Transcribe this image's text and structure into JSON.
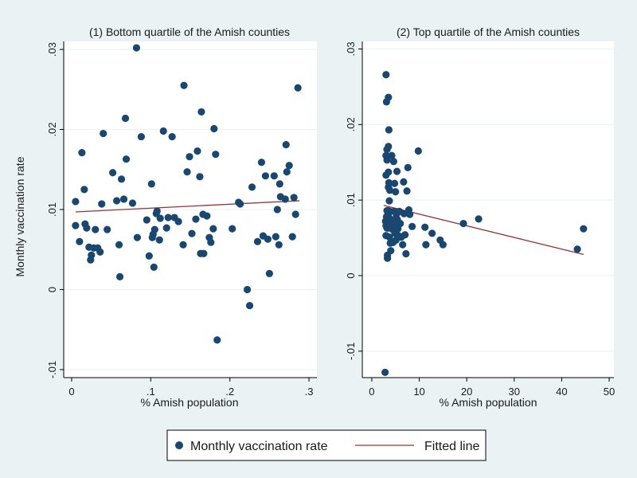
{
  "figure": {
    "ylabel": "Monthly vaccination rate",
    "legend": {
      "series_label": "Monthly vaccination rate",
      "line_label": "Fitted line",
      "placement": "bottom-center"
    }
  },
  "colors": {
    "background": "#eaf2f3",
    "plot_bg": "#ffffff",
    "marker": "#1a476f",
    "fit_line": "#90353b",
    "grid": "#eaf2f3"
  },
  "chart_data": [
    {
      "type": "scatter",
      "title": "(1) Bottom quartile of the Amish counties",
      "xlabel": "% Amish population",
      "xlim": [
        -0.01,
        0.31
      ],
      "ylim": [
        -0.011,
        0.031
      ],
      "xticks": [
        0,
        0.1,
        0.2,
        0.3
      ],
      "xtick_labels": [
        "0",
        ".1",
        ".2",
        ".3"
      ],
      "yticks": [
        -0.01,
        0,
        0.01,
        0.02,
        0.03
      ],
      "ytick_labels": [
        "-.01",
        "0",
        ".01",
        ".02",
        ".03"
      ],
      "grid": true,
      "points": [
        [
          0.005,
          0.011
        ],
        [
          0.005,
          0.008
        ],
        [
          0.01,
          0.006
        ],
        [
          0.013,
          0.0171
        ],
        [
          0.016,
          0.0125
        ],
        [
          0.017,
          0.0082
        ],
        [
          0.019,
          0.0077
        ],
        [
          0.022,
          0.0053
        ],
        [
          0.024,
          0.0037
        ],
        [
          0.025,
          0.0043
        ],
        [
          0.028,
          0.0052
        ],
        [
          0.03,
          0.0075
        ],
        [
          0.033,
          0.0052
        ],
        [
          0.036,
          0.0047
        ],
        [
          0.038,
          0.0107
        ],
        [
          0.04,
          0.0195
        ],
        [
          0.045,
          0.0075
        ],
        [
          0.052,
          0.0146
        ],
        [
          0.057,
          0.0111
        ],
        [
          0.06,
          0.0056
        ],
        [
          0.061,
          0.0016
        ],
        [
          0.063,
          0.0138
        ],
        [
          0.066,
          0.0113
        ],
        [
          0.068,
          0.0214
        ],
        [
          0.069,
          0.0163
        ],
        [
          0.077,
          0.0108
        ],
        [
          0.082,
          0.0302
        ],
        [
          0.083,
          0.0065
        ],
        [
          0.088,
          0.0191
        ],
        [
          0.095,
          0.0087
        ],
        [
          0.098,
          0.0042
        ],
        [
          0.101,
          0.0132
        ],
        [
          0.102,
          0.0065
        ],
        [
          0.103,
          0.0069
        ],
        [
          0.104,
          0.0028
        ],
        [
          0.105,
          0.0075
        ],
        [
          0.107,
          0.0095
        ],
        [
          0.108,
          0.0098
        ],
        [
          0.111,
          0.0062
        ],
        [
          0.112,
          0.0089
        ],
        [
          0.116,
          0.0198
        ],
        [
          0.12,
          0.0077
        ],
        [
          0.122,
          0.009
        ],
        [
          0.127,
          0.0191
        ],
        [
          0.13,
          0.009
        ],
        [
          0.135,
          0.0085
        ],
        [
          0.141,
          0.0056
        ],
        [
          0.142,
          0.0255
        ],
        [
          0.146,
          0.0147
        ],
        [
          0.149,
          0.0166
        ],
        [
          0.152,
          0.007
        ],
        [
          0.157,
          0.0088
        ],
        [
          0.159,
          0.0173
        ],
        [
          0.162,
          0.0141
        ],
        [
          0.163,
          0.0045
        ],
        [
          0.164,
          0.0222
        ],
        [
          0.166,
          0.0094
        ],
        [
          0.167,
          0.0045
        ],
        [
          0.171,
          0.0092
        ],
        [
          0.174,
          0.0065
        ],
        [
          0.176,
          0.0059
        ],
        [
          0.179,
          0.0076
        ],
        [
          0.18,
          0.0201
        ],
        [
          0.182,
          0.0169
        ],
        [
          0.184,
          -0.0063
        ],
        [
          0.203,
          0.0076
        ],
        [
          0.211,
          0.0109
        ],
        [
          0.213,
          0.0107
        ],
        [
          0.222,
          0.0
        ],
        [
          0.225,
          -0.002
        ],
        [
          0.228,
          0.0128
        ],
        [
          0.235,
          0.006
        ],
        [
          0.24,
          0.0159
        ],
        [
          0.242,
          0.0067
        ],
        [
          0.245,
          0.0142
        ],
        [
          0.248,
          0.0063
        ],
        [
          0.25,
          0.002
        ],
        [
          0.256,
          0.0142
        ],
        [
          0.258,
          0.0066
        ],
        [
          0.26,
          0.01
        ],
        [
          0.262,
          0.0056
        ],
        [
          0.263,
          0.0132
        ],
        [
          0.264,
          0.0116
        ],
        [
          0.27,
          0.0113
        ],
        [
          0.271,
          0.0181
        ],
        [
          0.272,
          0.0147
        ],
        [
          0.275,
          0.0155
        ],
        [
          0.279,
          0.0066
        ],
        [
          0.281,
          0.0115
        ],
        [
          0.283,
          0.0094
        ],
        [
          0.286,
          0.0252
        ]
      ],
      "fit": {
        "x": [
          0.005,
          0.288
        ],
        "y": [
          0.0097,
          0.0111
        ]
      }
    },
    {
      "type": "scatter",
      "title": "(2) Top quartile of the Amish counties",
      "xlabel": "% Amish population",
      "xlim": [
        -2,
        51
      ],
      "ylim": [
        -0.0135,
        0.031
      ],
      "xticks": [
        0,
        10,
        20,
        30,
        40,
        50
      ],
      "xtick_labels": [
        "0",
        "10",
        "20",
        "30",
        "40",
        "50"
      ],
      "yticks": [
        -0.01,
        0,
        0.01,
        0.02,
        0.03
      ],
      "ytick_labels": [
        "-.01",
        "0",
        ".01",
        ".02",
        ".03"
      ],
      "grid": true,
      "points": [
        [
          2.8,
          -0.0128
        ],
        [
          2.9,
          0.0072
        ],
        [
          3.0,
          0.0266
        ],
        [
          3.0,
          0.0159
        ],
        [
          3.0,
          0.0133
        ],
        [
          3.0,
          0.0053
        ],
        [
          3.0,
          0.0066
        ],
        [
          3.1,
          0.0071
        ],
        [
          3.1,
          0.0078
        ],
        [
          3.2,
          0.0167
        ],
        [
          3.2,
          0.0153
        ],
        [
          3.2,
          0.0086
        ],
        [
          3.2,
          0.0063
        ],
        [
          3.3,
          0.0027
        ],
        [
          3.3,
          0.0023
        ],
        [
          3.4,
          0.0086
        ],
        [
          3.5,
          0.0236
        ],
        [
          3.5,
          0.0171
        ],
        [
          3.5,
          0.0137
        ],
        [
          3.5,
          0.0117
        ],
        [
          3.5,
          0.0079
        ],
        [
          3.5,
          0.0063
        ],
        [
          3.6,
          0.0193
        ],
        [
          3.6,
          0.0123
        ],
        [
          3.7,
          0.0099
        ],
        [
          3.7,
          0.0051
        ],
        [
          3.8,
          0.0113
        ],
        [
          3.8,
          0.0085
        ],
        [
          3.9,
          0.0072
        ],
        [
          3.9,
          0.0043
        ],
        [
          4.0,
          0.0066
        ],
        [
          4.0,
          0.0033
        ],
        [
          4.2,
          0.0159
        ],
        [
          4.3,
          0.0074
        ],
        [
          4.4,
          0.0061
        ],
        [
          4.5,
          0.0044
        ],
        [
          4.6,
          0.0151
        ],
        [
          4.7,
          0.0085
        ],
        [
          4.8,
          0.0122
        ],
        [
          4.8,
          0.0069
        ],
        [
          4.9,
          0.0056
        ],
        [
          5.0,
          0.0111
        ],
        [
          5.0,
          0.0068
        ],
        [
          5.1,
          0.0047
        ],
        [
          5.2,
          0.0081
        ],
        [
          5.3,
          0.0138
        ],
        [
          5.4,
          0.0074
        ],
        [
          5.5,
          0.0062
        ],
        [
          5.6,
          0.0053
        ],
        [
          5.8,
          0.0085
        ],
        [
          6.0,
          0.0069
        ],
        [
          6.2,
          0.0051
        ],
        [
          6.5,
          0.0041
        ],
        [
          6.7,
          0.0124
        ],
        [
          6.8,
          0.0082
        ],
        [
          7.0,
          0.0054
        ],
        [
          7.2,
          0.0029
        ],
        [
          7.4,
          0.0112
        ],
        [
          7.6,
          0.0143
        ],
        [
          7.8,
          0.0087
        ],
        [
          8.0,
          0.0081
        ],
        [
          8.5,
          0.0065
        ],
        [
          3.1,
          0.023
        ],
        [
          9.8,
          0.0165
        ],
        [
          11.2,
          0.0064
        ],
        [
          11.4,
          0.0041
        ],
        [
          12.7,
          0.0056
        ],
        [
          14.4,
          0.0047
        ],
        [
          15.0,
          0.0041
        ],
        [
          19.3,
          0.0069
        ],
        [
          22.5,
          0.0075
        ],
        [
          43.3,
          0.0035
        ],
        [
          44.6,
          0.0062
        ]
      ],
      "fit": {
        "x": [
          2.5,
          44.6
        ],
        "y": [
          0.0093,
          0.0028
        ]
      }
    }
  ]
}
